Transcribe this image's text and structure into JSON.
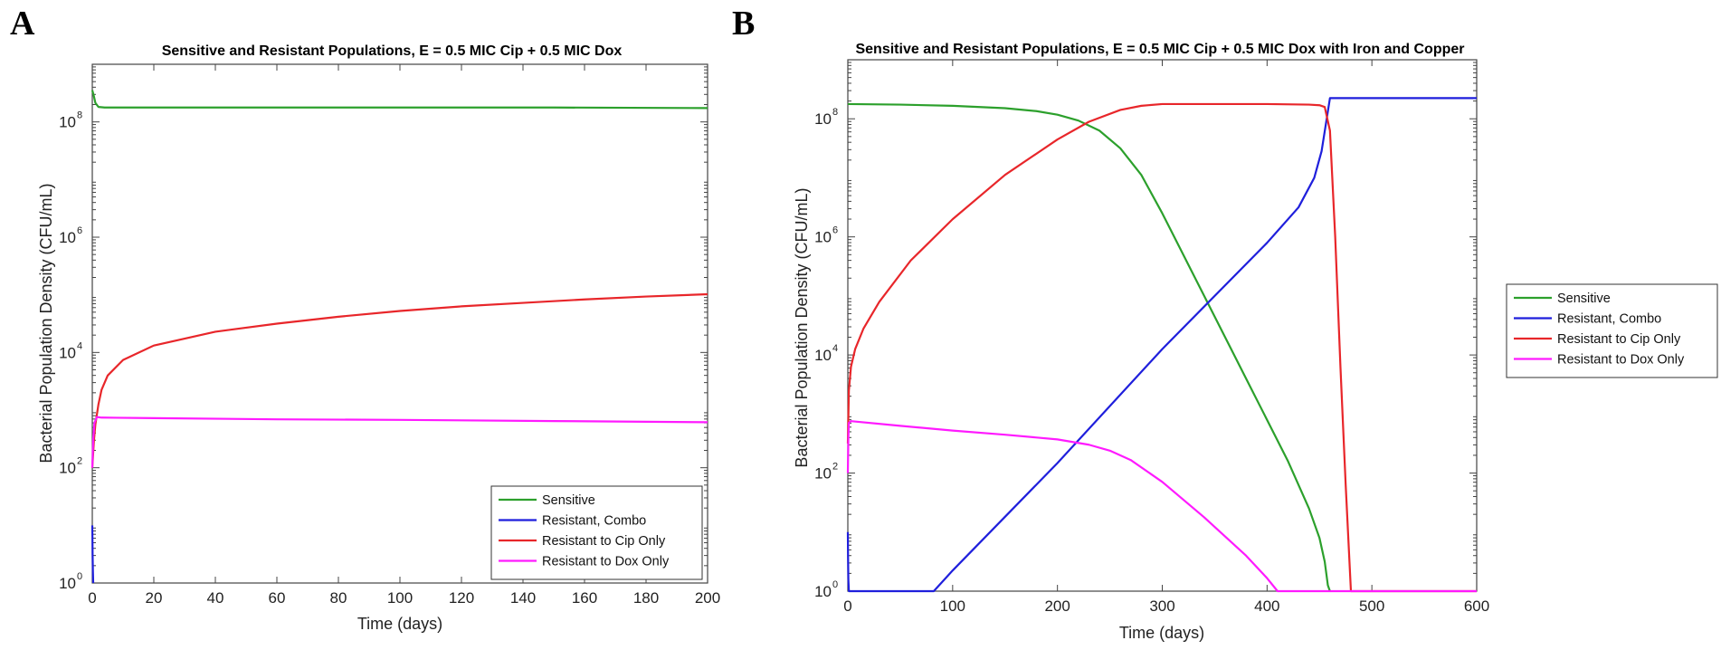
{
  "chart_data": [
    {
      "type": "line",
      "panel_label": "A",
      "title": "Sensitive and Resistant Populations, E = 0.5 MIC Cip + 0.5 MIC Dox",
      "xlabel": "Time (days)",
      "ylabel": "Bacterial Population Density (CFU/mL)",
      "xlim": [
        0,
        200
      ],
      "xticks": [
        0,
        20,
        40,
        60,
        80,
        100,
        120,
        140,
        160,
        180,
        200
      ],
      "yscale": "log",
      "ylim_log10": [
        0,
        9
      ],
      "yticks_log10": [
        0,
        2,
        4,
        6,
        8
      ],
      "ytick_labels": [
        "10",
        "10",
        "10",
        "10",
        "10"
      ],
      "ytick_exponents": [
        "0",
        "2",
        "4",
        "6",
        "8"
      ],
      "legend_position": "bottom-right",
      "series": [
        {
          "name": "Sensitive",
          "color": "#2ca02c",
          "x": [
            0,
            0.5,
            1,
            2,
            4,
            10,
            50,
            100,
            150,
            200
          ],
          "log10_y": [
            8.55,
            8.45,
            8.33,
            8.26,
            8.25,
            8.25,
            8.25,
            8.25,
            8.25,
            8.24
          ]
        },
        {
          "name": "Resistant, Combo",
          "color": "#1f1fdc",
          "x": [
            0,
            0.05,
            0.1,
            0.2,
            0.3
          ],
          "log10_y": [
            1.0,
            0.8,
            0.5,
            0.2,
            0.0
          ]
        },
        {
          "name": "Resistant to Cip Only",
          "color": "#e8262a",
          "x": [
            0,
            0.5,
            1,
            2,
            3,
            5,
            10,
            20,
            40,
            60,
            80,
            100,
            120,
            140,
            160,
            180,
            200
          ],
          "log10_y": [
            2.0,
            2.45,
            2.75,
            3.1,
            3.35,
            3.6,
            3.87,
            4.12,
            4.36,
            4.5,
            4.62,
            4.72,
            4.8,
            4.86,
            4.92,
            4.97,
            5.01
          ]
        },
        {
          "name": "Resistant to Dox Only",
          "color": "#ff1aff",
          "x": [
            0,
            0.3,
            0.7,
            1.5,
            3,
            20,
            60,
            100,
            150,
            200
          ],
          "log10_y": [
            2.0,
            2.5,
            2.78,
            2.88,
            2.87,
            2.86,
            2.84,
            2.83,
            2.81,
            2.79
          ]
        }
      ]
    },
    {
      "type": "line",
      "panel_label": "B",
      "title": "Sensitive and Resistant Populations, E = 0.5 MIC Cip + 0.5 MIC Dox with Iron and Copper",
      "xlabel": "Time (days)",
      "ylabel": "Bacterial Population Density (CFU/mL)",
      "xlim": [
        0,
        600
      ],
      "xticks": [
        0,
        100,
        200,
        300,
        400,
        500,
        600
      ],
      "yscale": "log",
      "ylim_log10": [
        0,
        9
      ],
      "yticks_log10": [
        0,
        2,
        4,
        6,
        8
      ],
      "ytick_labels": [
        "10",
        "10",
        "10",
        "10",
        "10"
      ],
      "ytick_exponents": [
        "0",
        "2",
        "4",
        "6",
        "8"
      ],
      "legend_position": "outside-right",
      "series": [
        {
          "name": "Sensitive",
          "color": "#2ca02c",
          "x": [
            0,
            50,
            100,
            150,
            180,
            200,
            220,
            240,
            260,
            280,
            300,
            340,
            380,
            420,
            440,
            450,
            455,
            458,
            460
          ],
          "log10_y": [
            8.25,
            8.24,
            8.22,
            8.18,
            8.13,
            8.07,
            7.97,
            7.8,
            7.5,
            7.05,
            6.4,
            5.0,
            3.6,
            2.2,
            1.4,
            0.9,
            0.5,
            0.1,
            0.0
          ]
        },
        {
          "name": "Resistant, Combo",
          "color": "#1f1fdc",
          "x": [
            0,
            0.2,
            0.5,
            1,
            82,
            100,
            200,
            300,
            400,
            430,
            445,
            452,
            456,
            460,
            600
          ],
          "log10_y": [
            1.0,
            0.6,
            0.2,
            0.0,
            0.0,
            0.35,
            2.17,
            4.1,
            5.9,
            6.5,
            7.0,
            7.45,
            7.9,
            8.35,
            8.35
          ]
        },
        {
          "name": "Resistant to Cip Only",
          "color": "#e8262a",
          "x": [
            0,
            1,
            3,
            7,
            15,
            30,
            60,
            100,
            150,
            200,
            230,
            260,
            280,
            300,
            340,
            400,
            440,
            450,
            455,
            460,
            465,
            470,
            475,
            480,
            600
          ],
          "log10_y": [
            2.5,
            3.4,
            3.8,
            4.1,
            4.45,
            4.9,
            5.6,
            6.3,
            7.05,
            7.65,
            7.95,
            8.15,
            8.22,
            8.25,
            8.25,
            8.25,
            8.24,
            8.23,
            8.2,
            7.8,
            6.0,
            3.8,
            1.8,
            0.0,
            0.0
          ]
        },
        {
          "name": "Resistant to Dox Only",
          "color": "#ff1aff",
          "x": [
            0,
            0.5,
            1,
            3,
            50,
            100,
            150,
            200,
            230,
            250,
            270,
            300,
            340,
            380,
            400,
            410,
            600
          ],
          "log10_y": [
            2.0,
            2.6,
            2.85,
            2.88,
            2.8,
            2.72,
            2.65,
            2.57,
            2.48,
            2.38,
            2.22,
            1.85,
            1.25,
            0.6,
            0.22,
            0.0,
            0.0
          ]
        }
      ]
    }
  ]
}
